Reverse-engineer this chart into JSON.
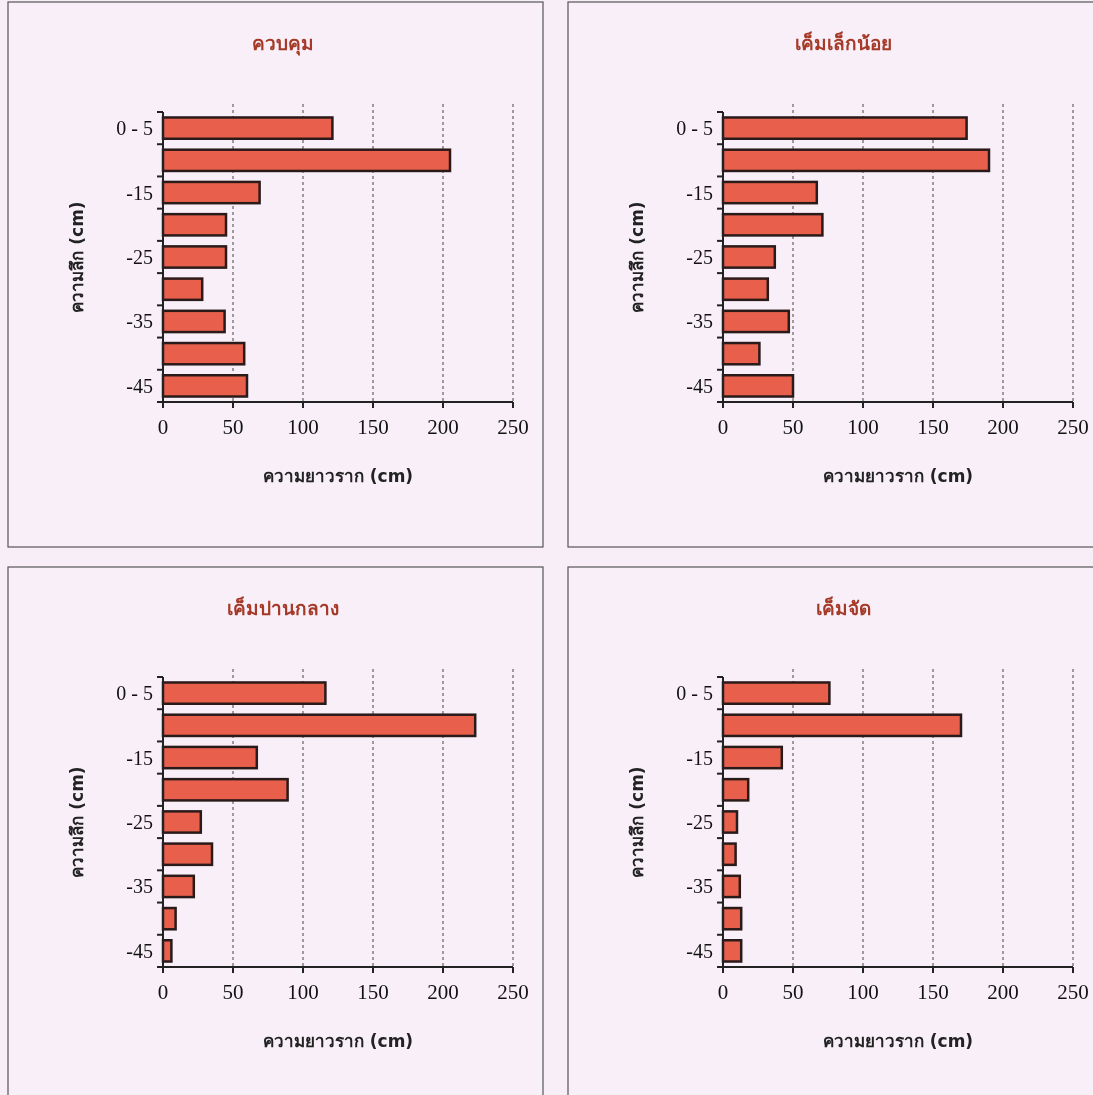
{
  "chart_data": [
    {
      "type": "bar",
      "orientation": "horizontal",
      "title": "ควบคุม",
      "xlabel": "ความยาวราก (cm)",
      "ylabel": "ความลึก (cm)",
      "categories": [
        "0 - 5",
        null,
        "-15",
        null,
        "-25",
        null,
        "-35",
        null,
        "-45"
      ],
      "values": [
        121,
        205,
        69,
        45,
        45,
        28,
        44,
        58,
        60
      ],
      "color": "#e8604c",
      "xlim": [
        0,
        250
      ],
      "xticks": [
        0,
        50,
        100,
        150,
        200,
        250
      ],
      "grid": "x"
    },
    {
      "type": "bar",
      "orientation": "horizontal",
      "title": "เค็มเล็กน้อย",
      "xlabel": "ความยาวราก (cm)",
      "ylabel": "ความลึก (cm)",
      "categories": [
        "0 - 5",
        null,
        "-15",
        null,
        "-25",
        null,
        "-35",
        null,
        "-45"
      ],
      "values": [
        174,
        190,
        67,
        71,
        37,
        32,
        47,
        26,
        50
      ],
      "color": "#e8604c",
      "xlim": [
        0,
        250
      ],
      "xticks": [
        0,
        50,
        100,
        150,
        200,
        250
      ],
      "grid": "x"
    },
    {
      "type": "bar",
      "orientation": "horizontal",
      "title": "เค็มปานกลาง",
      "xlabel": "ความยาวราก (cm)",
      "ylabel": "ความลึก (cm)",
      "categories": [
        "0 - 5",
        null,
        "-15",
        null,
        "-25",
        null,
        "-35",
        null,
        "-45"
      ],
      "values": [
        116,
        223,
        67,
        89,
        27,
        35,
        22,
        9,
        6
      ],
      "color": "#e8604c",
      "xlim": [
        0,
        250
      ],
      "xticks": [
        0,
        50,
        100,
        150,
        200,
        250
      ],
      "grid": "x"
    },
    {
      "type": "bar",
      "orientation": "horizontal",
      "title": "เค็มจัด",
      "xlabel": "ความยาวราก (cm)",
      "ylabel": "ความลึก (cm)",
      "categories": [
        "0 - 5",
        null,
        "-15",
        null,
        "-25",
        null,
        "-35",
        null,
        "-45"
      ],
      "values": [
        76,
        170,
        42,
        18,
        10,
        9,
        12,
        13,
        13
      ],
      "color": "#e8604c",
      "xlim": [
        0,
        250
      ],
      "xticks": [
        0,
        50,
        100,
        150,
        200,
        250
      ],
      "grid": "x"
    }
  ]
}
